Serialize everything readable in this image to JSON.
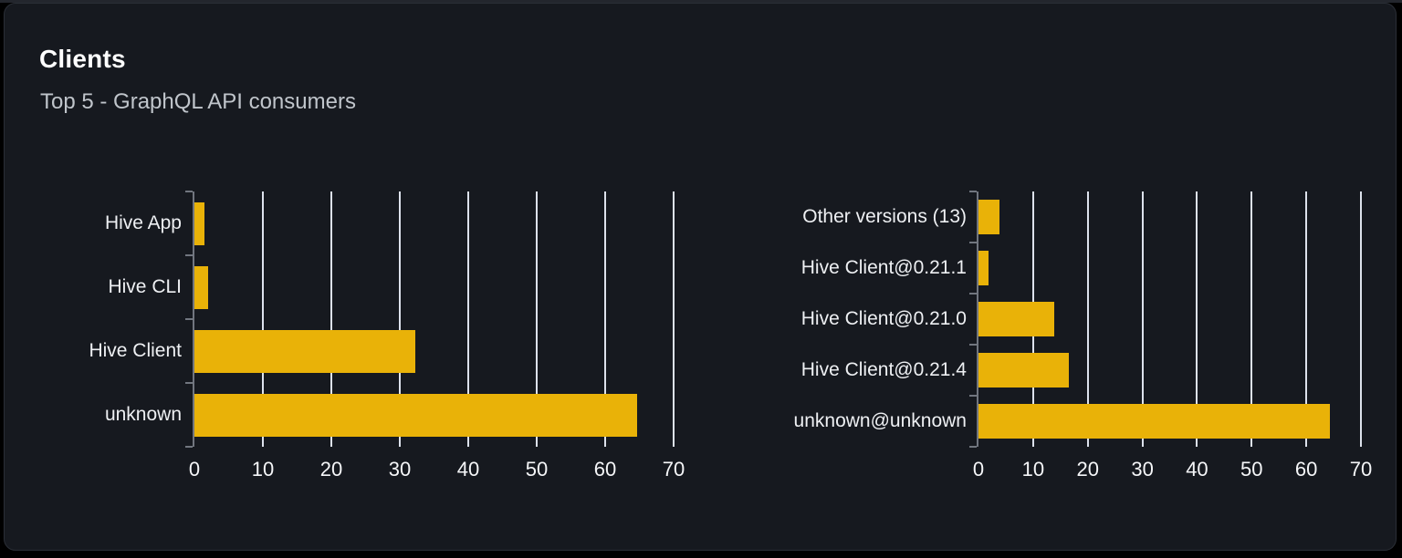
{
  "card": {
    "title": "Clients",
    "subtitle": "Top 5 - GraphQL API consumers"
  },
  "colors": {
    "page_bg": "#000000",
    "card_bg": "#16191f",
    "card_border": "#2a2e36",
    "title": "#ffffff",
    "subtitle": "#c0c5cb",
    "bar": "#e9b208",
    "grid": "#dde2ec",
    "axis": "#71767f",
    "category_label": "#eef0f3",
    "tick_label": "#f5f6f8"
  },
  "chart_data": [
    {
      "name": "clients",
      "type": "bar",
      "orientation": "horizontal",
      "title": "",
      "categories": [
        "Hive App",
        "Hive CLI",
        "Hive Client",
        "unknown"
      ],
      "values": [
        1.5,
        2,
        32.3,
        64.6
      ],
      "xticks": [
        0,
        10,
        20,
        30,
        40,
        50,
        60,
        70
      ],
      "xlim": [
        0,
        70
      ],
      "xlabel": "",
      "ylabel": "",
      "grid": "vertical",
      "legend": "none"
    },
    {
      "name": "client-versions",
      "type": "bar",
      "orientation": "horizontal",
      "title": "",
      "categories": [
        "Other versions (13)",
        "Hive Client@0.21.1",
        "Hive Client@0.21.0",
        "Hive Client@0.21.4",
        "unknown@unknown"
      ],
      "values": [
        3.9,
        1.8,
        13.8,
        16.5,
        64.4
      ],
      "xticks": [
        0,
        10,
        20,
        30,
        40,
        50,
        60,
        70
      ],
      "xlim": [
        0,
        70
      ],
      "xlabel": "",
      "ylabel": "",
      "grid": "vertical",
      "legend": "none"
    }
  ]
}
